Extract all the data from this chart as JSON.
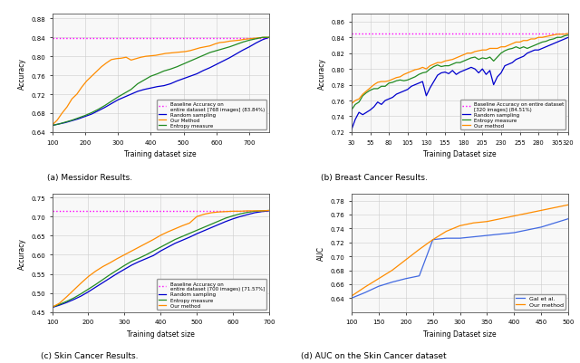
{
  "fig_width": 6.4,
  "fig_height": 4.02,
  "dpi": 100,
  "subplot_titles": [
    "(a) Messidor Results.",
    "(b) Breast Cancer Results.",
    "(c) Skin Cancer Results.",
    "(d) AUC on the Skin Cancer dataset"
  ],
  "plot_a": {
    "baseline": 0.8384,
    "baseline_label": "Baseline Accuracy on\nentire dataset [768 images] (83.84%)",
    "x_random": [
      100,
      120,
      140,
      160,
      180,
      200,
      220,
      240,
      260,
      280,
      300,
      320,
      340,
      360,
      380,
      400,
      420,
      440,
      460,
      480,
      500,
      520,
      540,
      560,
      580,
      600,
      620,
      640,
      660,
      680,
      700,
      720,
      740,
      760
    ],
    "y_random": [
      0.654,
      0.657,
      0.66,
      0.664,
      0.668,
      0.673,
      0.678,
      0.685,
      0.692,
      0.7,
      0.708,
      0.714,
      0.72,
      0.726,
      0.73,
      0.733,
      0.736,
      0.738,
      0.742,
      0.748,
      0.753,
      0.758,
      0.763,
      0.77,
      0.776,
      0.783,
      0.79,
      0.797,
      0.805,
      0.813,
      0.82,
      0.828,
      0.835,
      0.84
    ],
    "x_our": [
      100,
      115,
      130,
      145,
      160,
      175,
      190,
      205,
      220,
      235,
      250,
      265,
      280,
      295,
      310,
      325,
      340,
      355,
      370,
      385,
      400,
      415,
      430,
      445,
      460,
      475,
      490,
      505,
      520,
      535,
      550,
      565,
      580,
      595,
      610,
      625,
      640,
      655,
      670,
      685,
      700,
      715,
      730,
      745,
      760
    ],
    "y_our": [
      0.655,
      0.665,
      0.68,
      0.693,
      0.71,
      0.72,
      0.735,
      0.748,
      0.758,
      0.768,
      0.778,
      0.786,
      0.793,
      0.795,
      0.796,
      0.798,
      0.792,
      0.795,
      0.798,
      0.8,
      0.801,
      0.802,
      0.804,
      0.806,
      0.807,
      0.808,
      0.809,
      0.81,
      0.812,
      0.815,
      0.818,
      0.82,
      0.822,
      0.826,
      0.829,
      0.83,
      0.832,
      0.833,
      0.834,
      0.836,
      0.837,
      0.838,
      0.839,
      0.84,
      0.84
    ],
    "x_entropy": [
      100,
      120,
      140,
      160,
      180,
      200,
      220,
      240,
      260,
      280,
      300,
      320,
      340,
      360,
      380,
      400,
      420,
      440,
      460,
      480,
      500,
      520,
      540,
      560,
      580,
      600,
      620,
      640,
      660,
      680,
      700,
      720,
      740,
      760
    ],
    "y_entropy": [
      0.654,
      0.657,
      0.661,
      0.665,
      0.67,
      0.675,
      0.681,
      0.688,
      0.696,
      0.705,
      0.714,
      0.722,
      0.73,
      0.742,
      0.75,
      0.758,
      0.763,
      0.769,
      0.773,
      0.778,
      0.784,
      0.79,
      0.796,
      0.802,
      0.808,
      0.812,
      0.816,
      0.82,
      0.825,
      0.83,
      0.834,
      0.837,
      0.84,
      0.84
    ],
    "xlim": [
      100,
      760
    ],
    "ylim": [
      0.64,
      0.89
    ],
    "yticks": [
      0.64,
      0.68,
      0.72,
      0.76,
      0.8,
      0.84,
      0.88
    ],
    "xlabel": "Training dataset size",
    "ylabel": "Accuracy"
  },
  "plot_b": {
    "baseline": 0.8451,
    "baseline_label": "Baseline Accuracy on entire dataset\n[320 images] (84.51%)",
    "x_random": [
      30,
      35,
      40,
      45,
      50,
      55,
      60,
      65,
      70,
      75,
      80,
      85,
      90,
      95,
      100,
      105,
      110,
      115,
      120,
      125,
      130,
      135,
      140,
      145,
      150,
      155,
      160,
      165,
      170,
      175,
      180,
      185,
      190,
      195,
      200,
      205,
      210,
      215,
      220,
      225,
      230,
      235,
      240,
      245,
      250,
      255,
      260,
      265,
      270,
      275,
      280,
      285,
      290,
      295,
      300,
      305,
      310,
      315,
      320
    ],
    "y_random": [
      0.723,
      0.736,
      0.745,
      0.742,
      0.745,
      0.748,
      0.752,
      0.758,
      0.755,
      0.76,
      0.762,
      0.764,
      0.768,
      0.77,
      0.772,
      0.774,
      0.778,
      0.78,
      0.782,
      0.784,
      0.766,
      0.776,
      0.784,
      0.792,
      0.795,
      0.796,
      0.794,
      0.798,
      0.793,
      0.796,
      0.798,
      0.8,
      0.802,
      0.8,
      0.795,
      0.8,
      0.793,
      0.798,
      0.78,
      0.79,
      0.795,
      0.804,
      0.806,
      0.808,
      0.812,
      0.814,
      0.816,
      0.82,
      0.822,
      0.824,
      0.824,
      0.826,
      0.828,
      0.83,
      0.832,
      0.834,
      0.836,
      0.838,
      0.84
    ],
    "x_entropy": [
      30,
      35,
      40,
      45,
      50,
      55,
      60,
      65,
      70,
      75,
      80,
      85,
      90,
      95,
      100,
      105,
      110,
      115,
      120,
      125,
      130,
      135,
      140,
      145,
      150,
      155,
      160,
      165,
      170,
      175,
      180,
      185,
      190,
      195,
      200,
      205,
      210,
      215,
      220,
      225,
      230,
      235,
      240,
      245,
      250,
      255,
      260,
      265,
      270,
      275,
      280,
      285,
      290,
      295,
      300,
      305,
      310,
      315,
      320
    ],
    "y_entropy": [
      0.748,
      0.755,
      0.758,
      0.766,
      0.77,
      0.773,
      0.775,
      0.775,
      0.778,
      0.778,
      0.782,
      0.783,
      0.785,
      0.786,
      0.785,
      0.786,
      0.788,
      0.79,
      0.793,
      0.795,
      0.796,
      0.8,
      0.803,
      0.805,
      0.803,
      0.804,
      0.804,
      0.806,
      0.808,
      0.808,
      0.81,
      0.812,
      0.814,
      0.815,
      0.812,
      0.814,
      0.813,
      0.815,
      0.81,
      0.815,
      0.82,
      0.823,
      0.825,
      0.826,
      0.828,
      0.826,
      0.828,
      0.826,
      0.828,
      0.83,
      0.832,
      0.834,
      0.835,
      0.837,
      0.838,
      0.84,
      0.84,
      0.842,
      0.843
    ],
    "x_our": [
      30,
      35,
      40,
      45,
      50,
      55,
      60,
      65,
      70,
      75,
      80,
      85,
      90,
      95,
      100,
      105,
      110,
      115,
      120,
      125,
      130,
      135,
      140,
      145,
      150,
      155,
      160,
      165,
      170,
      175,
      180,
      185,
      190,
      195,
      200,
      205,
      210,
      215,
      220,
      225,
      230,
      235,
      240,
      245,
      250,
      255,
      260,
      265,
      270,
      275,
      280,
      285,
      290,
      295,
      300,
      305,
      310,
      315,
      320
    ],
    "y_our": [
      0.756,
      0.76,
      0.762,
      0.768,
      0.772,
      0.776,
      0.78,
      0.783,
      0.784,
      0.784,
      0.785,
      0.787,
      0.789,
      0.79,
      0.793,
      0.795,
      0.797,
      0.799,
      0.8,
      0.802,
      0.8,
      0.804,
      0.806,
      0.808,
      0.808,
      0.81,
      0.811,
      0.812,
      0.814,
      0.816,
      0.818,
      0.82,
      0.82,
      0.822,
      0.823,
      0.824,
      0.824,
      0.826,
      0.826,
      0.826,
      0.828,
      0.828,
      0.83,
      0.832,
      0.834,
      0.834,
      0.836,
      0.836,
      0.838,
      0.838,
      0.84,
      0.84,
      0.841,
      0.842,
      0.843,
      0.844,
      0.844,
      0.844,
      0.845
    ],
    "xlim": [
      30,
      320
    ],
    "ylim": [
      0.72,
      0.87
    ],
    "xticks": [
      30,
      55,
      80,
      105,
      130,
      155,
      180,
      205,
      230,
      255,
      280,
      305,
      320
    ],
    "yticks": [
      0.72,
      0.74,
      0.76,
      0.78,
      0.8,
      0.82,
      0.84,
      0.86
    ],
    "xlabel": "Training Dataset size",
    "ylabel": "Accuracy"
  },
  "plot_c": {
    "baseline": 0.7157,
    "baseline_label": "Baseline Accuracy on\nentire dataset (700 images) [71.57%]",
    "x_random": [
      100,
      120,
      140,
      160,
      180,
      200,
      220,
      240,
      260,
      280,
      300,
      320,
      340,
      360,
      380,
      400,
      420,
      440,
      460,
      480,
      500,
      520,
      540,
      560,
      580,
      600,
      620,
      640,
      660,
      680,
      700
    ],
    "y_random": [
      0.462,
      0.468,
      0.475,
      0.483,
      0.492,
      0.503,
      0.515,
      0.527,
      0.539,
      0.551,
      0.562,
      0.573,
      0.582,
      0.59,
      0.598,
      0.61,
      0.62,
      0.63,
      0.638,
      0.646,
      0.655,
      0.663,
      0.671,
      0.679,
      0.687,
      0.694,
      0.7,
      0.705,
      0.71,
      0.713,
      0.715
    ],
    "x_entropy": [
      100,
      120,
      140,
      160,
      180,
      200,
      220,
      240,
      260,
      280,
      300,
      320,
      340,
      360,
      380,
      400,
      420,
      440,
      460,
      480,
      500,
      520,
      540,
      560,
      580,
      600,
      620,
      640,
      660,
      680,
      700
    ],
    "y_entropy": [
      0.463,
      0.47,
      0.478,
      0.487,
      0.498,
      0.51,
      0.522,
      0.535,
      0.548,
      0.56,
      0.572,
      0.583,
      0.591,
      0.6,
      0.61,
      0.62,
      0.63,
      0.64,
      0.648,
      0.656,
      0.664,
      0.672,
      0.68,
      0.688,
      0.696,
      0.702,
      0.707,
      0.711,
      0.714,
      0.715,
      0.716
    ],
    "x_our": [
      100,
      120,
      140,
      160,
      180,
      200,
      220,
      240,
      260,
      280,
      300,
      320,
      340,
      360,
      380,
      400,
      420,
      440,
      460,
      480,
      500,
      520,
      540,
      560,
      580,
      600,
      620,
      640,
      660,
      680,
      700
    ],
    "y_our": [
      0.463,
      0.473,
      0.49,
      0.508,
      0.526,
      0.543,
      0.557,
      0.569,
      0.579,
      0.59,
      0.6,
      0.61,
      0.62,
      0.63,
      0.64,
      0.651,
      0.66,
      0.668,
      0.676,
      0.683,
      0.7,
      0.706,
      0.71,
      0.712,
      0.713,
      0.714,
      0.714,
      0.715,
      0.715,
      0.715,
      0.716
    ],
    "xlim": [
      100,
      700
    ],
    "ylim": [
      0.45,
      0.76
    ],
    "yticks": [
      0.45,
      0.5,
      0.55,
      0.6,
      0.65,
      0.7,
      0.75
    ],
    "xlabel": "Training datset size",
    "ylabel": "Accuracy"
  },
  "plot_d": {
    "x_gal": [
      100,
      125,
      150,
      175,
      200,
      225,
      250,
      275,
      300,
      325,
      350,
      375,
      400,
      425,
      450,
      475,
      500
    ],
    "y_gal": [
      0.64,
      0.648,
      0.657,
      0.663,
      0.668,
      0.672,
      0.724,
      0.726,
      0.726,
      0.728,
      0.73,
      0.732,
      0.734,
      0.738,
      0.742,
      0.748,
      0.754
    ],
    "x_our": [
      100,
      125,
      150,
      175,
      200,
      225,
      250,
      275,
      300,
      325,
      350,
      375,
      400,
      425,
      450,
      475,
      500
    ],
    "y_our": [
      0.643,
      0.656,
      0.668,
      0.68,
      0.695,
      0.71,
      0.724,
      0.736,
      0.744,
      0.748,
      0.75,
      0.754,
      0.758,
      0.762,
      0.766,
      0.77,
      0.774
    ],
    "xlim": [
      100,
      500
    ],
    "ylim": [
      0.62,
      0.79
    ],
    "yticks": [
      0.64,
      0.66,
      0.68,
      0.7,
      0.72,
      0.74,
      0.76,
      0.78
    ],
    "xlabel": "Training Dataset size",
    "ylabel": "AUC"
  },
  "colors": {
    "baseline": "#FF00FF",
    "random": "#0000CD",
    "entropy": "#228B22",
    "our_abc": "#FF8C00",
    "gal": "#4169E1",
    "our_d": "#FF8C00"
  }
}
